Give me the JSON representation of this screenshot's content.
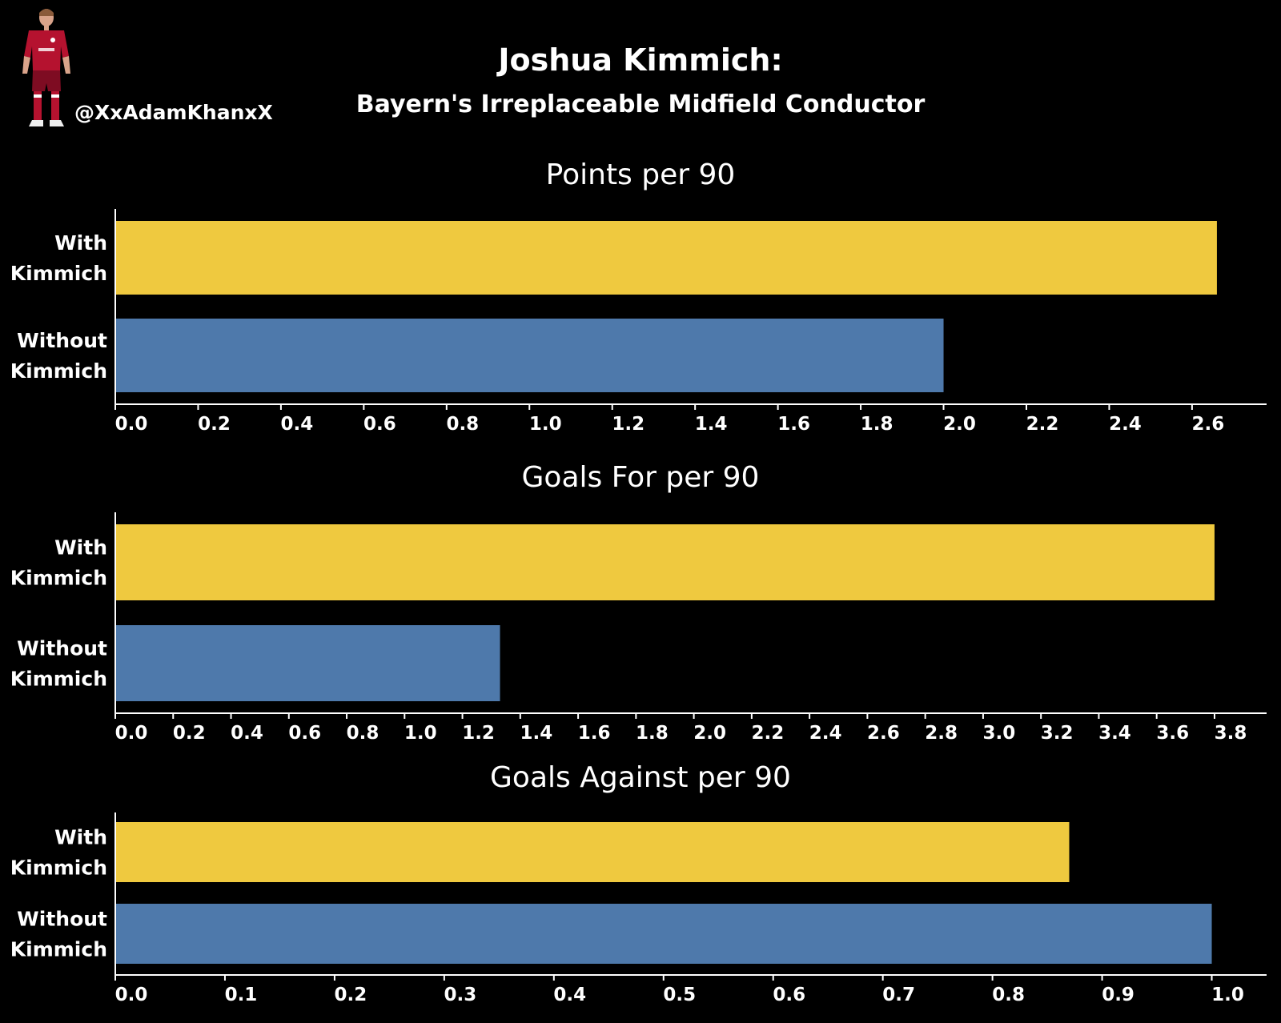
{
  "header": {
    "title": "Joshua Kimmich:",
    "subtitle": "Bayern's Irreplaceable Midfield Conductor",
    "handle": "@XxAdamKhanxX",
    "player_icon": "player-figure-icon"
  },
  "colors": {
    "background": "#000000",
    "with": "#EFC93F",
    "without": "#4E79AB",
    "text": "#FFFFFF",
    "kit_red": "#B5122F",
    "kit_dark": "#7E0C22"
  },
  "chart_data": [
    {
      "type": "bar",
      "orientation": "horizontal",
      "title": "Points per 90",
      "categories": [
        "With Kimmich",
        "Without Kimmich"
      ],
      "category_lines": [
        [
          "With",
          "Kimmich"
        ],
        [
          "Without",
          "Kimmich"
        ]
      ],
      "values": [
        2.66,
        2.0
      ],
      "xlim": [
        0,
        2.78
      ],
      "ticks": [
        0.0,
        0.2,
        0.4,
        0.6,
        0.8,
        1.0,
        1.2,
        1.4,
        1.6,
        1.8,
        2.0,
        2.2,
        2.4,
        2.6
      ],
      "tick_decimals": 1,
      "grid": false
    },
    {
      "type": "bar",
      "orientation": "horizontal",
      "title": "Goals For per 90",
      "categories": [
        "With Kimmich",
        "Without Kimmich"
      ],
      "category_lines": [
        [
          "With",
          "Kimmich"
        ],
        [
          "Without",
          "Kimmich"
        ]
      ],
      "values": [
        3.8,
        1.33
      ],
      "xlim": [
        0,
        3.98
      ],
      "ticks": [
        0.0,
        0.2,
        0.4,
        0.6,
        0.8,
        1.0,
        1.2,
        1.4,
        1.6,
        1.8,
        2.0,
        2.2,
        2.4,
        2.6,
        2.8,
        3.0,
        3.2,
        3.4,
        3.6,
        3.8
      ],
      "tick_decimals": 1,
      "grid": false
    },
    {
      "type": "bar",
      "orientation": "horizontal",
      "title": "Goals Against per 90",
      "categories": [
        "With Kimmich",
        "Without Kimmich"
      ],
      "category_lines": [
        [
          "With",
          "Kimmich"
        ],
        [
          "Without",
          "Kimmich"
        ]
      ],
      "values": [
        0.87,
        1.0
      ],
      "xlim": [
        0,
        1.05
      ],
      "ticks": [
        0.0,
        0.1,
        0.2,
        0.3,
        0.4,
        0.5,
        0.6,
        0.7,
        0.8,
        0.9,
        1.0
      ],
      "tick_decimals": 1,
      "grid": false
    }
  ]
}
